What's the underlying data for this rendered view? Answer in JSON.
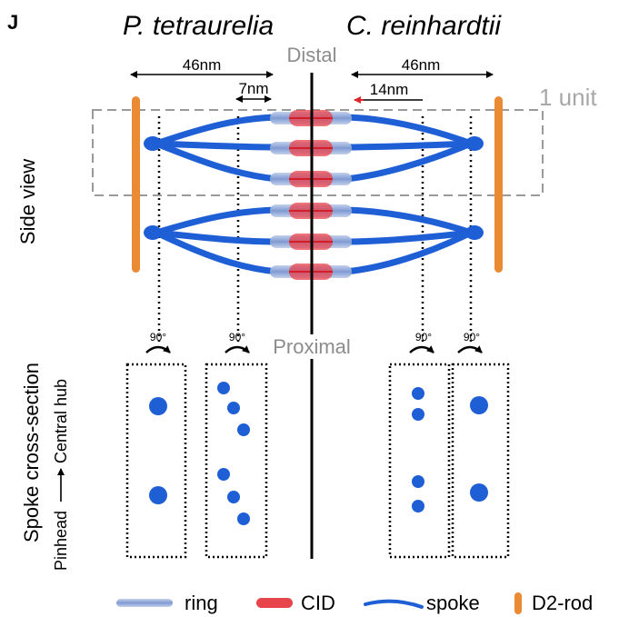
{
  "panel_label": "J",
  "species": {
    "left": "P. tetraurelia",
    "right": "C. reinhardtii"
  },
  "axis_labels": {
    "distal": "Distal",
    "proximal": "Proximal"
  },
  "measurements": {
    "left_width": "46nm",
    "left_offset": "7nm",
    "right_width": "46nm",
    "right_offset": "14nm"
  },
  "unit_label": "1 unit",
  "row_labels": {
    "side_view": "Side view",
    "cross_section": "Spoke cross-section",
    "direction_from": "Pinhead",
    "direction_to": "Central hub"
  },
  "rotation_label": "90°",
  "legend": [
    {
      "key": "ring",
      "label": "ring",
      "color": "#8fa8d8"
    },
    {
      "key": "cid",
      "label": "CID",
      "color": "#e8444c"
    },
    {
      "key": "spoke",
      "label": "spoke",
      "color": "#1f5fd6"
    },
    {
      "key": "d2rod",
      "label": "D2-rod",
      "color": "#ea8a32"
    }
  ],
  "colors": {
    "spoke": "#1f5fd6",
    "ring": "#8fa8d8",
    "cid": "#e8444c",
    "rod": "#ea8a32",
    "gray_text": "#8c8c8c",
    "red_arrow": "#e0252b"
  }
}
